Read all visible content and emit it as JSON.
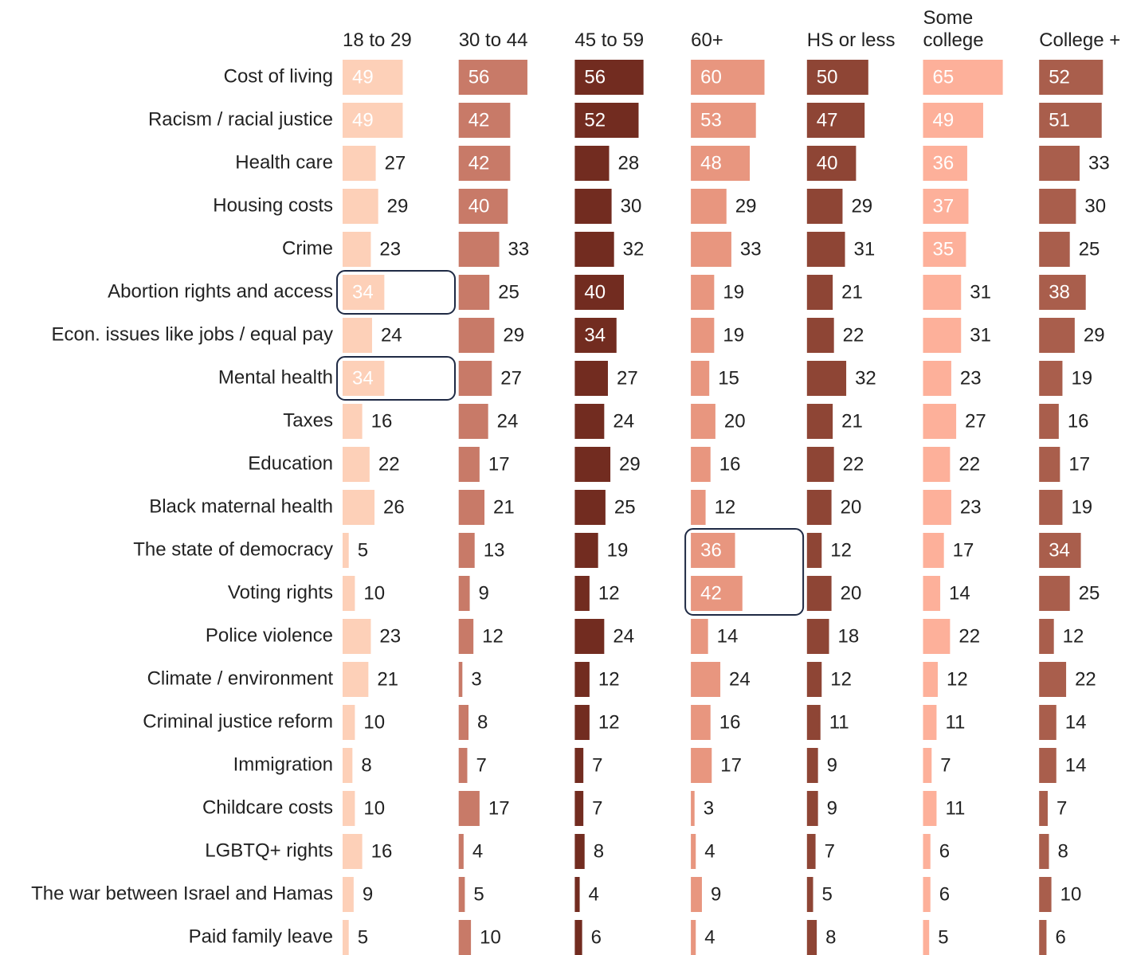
{
  "chart_data": {
    "type": "bar",
    "categories": [
      "Cost of living",
      "Racism / racial justice",
      "Health care",
      "Housing costs",
      "Crime",
      "Abortion rights and access",
      "Econ. issues like jobs / equal pay",
      "Mental health",
      "Taxes",
      "Education",
      "Black maternal health",
      "The state of democracy",
      "Voting rights",
      "Police violence",
      "Climate / environment",
      "Criminal justice reform",
      "Immigration",
      "Childcare costs",
      "LGBTQ+ rights",
      "The war between Israel and Hamas",
      "Paid family leave"
    ],
    "series": [
      {
        "name": "18 to 29",
        "color": "#fdd0b8",
        "values": [
          49,
          49,
          27,
          29,
          23,
          34,
          24,
          34,
          16,
          22,
          26,
          5,
          10,
          23,
          21,
          10,
          8,
          10,
          16,
          9,
          5
        ]
      },
      {
        "name": "30 to 44",
        "color": "#c87a68",
        "values": [
          56,
          42,
          42,
          40,
          33,
          25,
          29,
          27,
          24,
          17,
          21,
          13,
          9,
          12,
          3,
          8,
          7,
          17,
          4,
          5,
          10
        ]
      },
      {
        "name": "45 to 59",
        "color": "#722c20",
        "values": [
          56,
          52,
          28,
          30,
          32,
          40,
          34,
          27,
          24,
          29,
          25,
          19,
          12,
          24,
          12,
          12,
          7,
          7,
          8,
          4,
          6
        ]
      },
      {
        "name": "60+",
        "color": "#e8967f",
        "values": [
          60,
          53,
          48,
          29,
          33,
          19,
          19,
          15,
          20,
          16,
          12,
          36,
          42,
          14,
          24,
          16,
          17,
          3,
          4,
          9,
          4
        ]
      },
      {
        "name": "HS or less",
        "color": "#8e4535",
        "values": [
          50,
          47,
          40,
          29,
          31,
          21,
          22,
          32,
          21,
          22,
          20,
          12,
          20,
          18,
          12,
          11,
          9,
          9,
          7,
          5,
          8
        ]
      },
      {
        "name": "Some college",
        "color": "#fdb09a",
        "values": [
          65,
          49,
          36,
          37,
          35,
          31,
          31,
          23,
          27,
          22,
          23,
          17,
          14,
          22,
          12,
          11,
          7,
          11,
          6,
          6,
          5
        ]
      },
      {
        "name": "College +",
        "color": "#a95e4c",
        "values": [
          52,
          51,
          33,
          30,
          25,
          38,
          29,
          19,
          16,
          17,
          19,
          34,
          25,
          12,
          22,
          14,
          14,
          7,
          8,
          10,
          6
        ]
      }
    ],
    "highlights": [
      {
        "series": "18 to 29",
        "categories": [
          "Abortion rights and access"
        ]
      },
      {
        "series": "18 to 29",
        "categories": [
          "Mental health"
        ]
      },
      {
        "series": "60+",
        "categories": [
          "The state of democracy",
          "Voting rights"
        ]
      }
    ]
  }
}
